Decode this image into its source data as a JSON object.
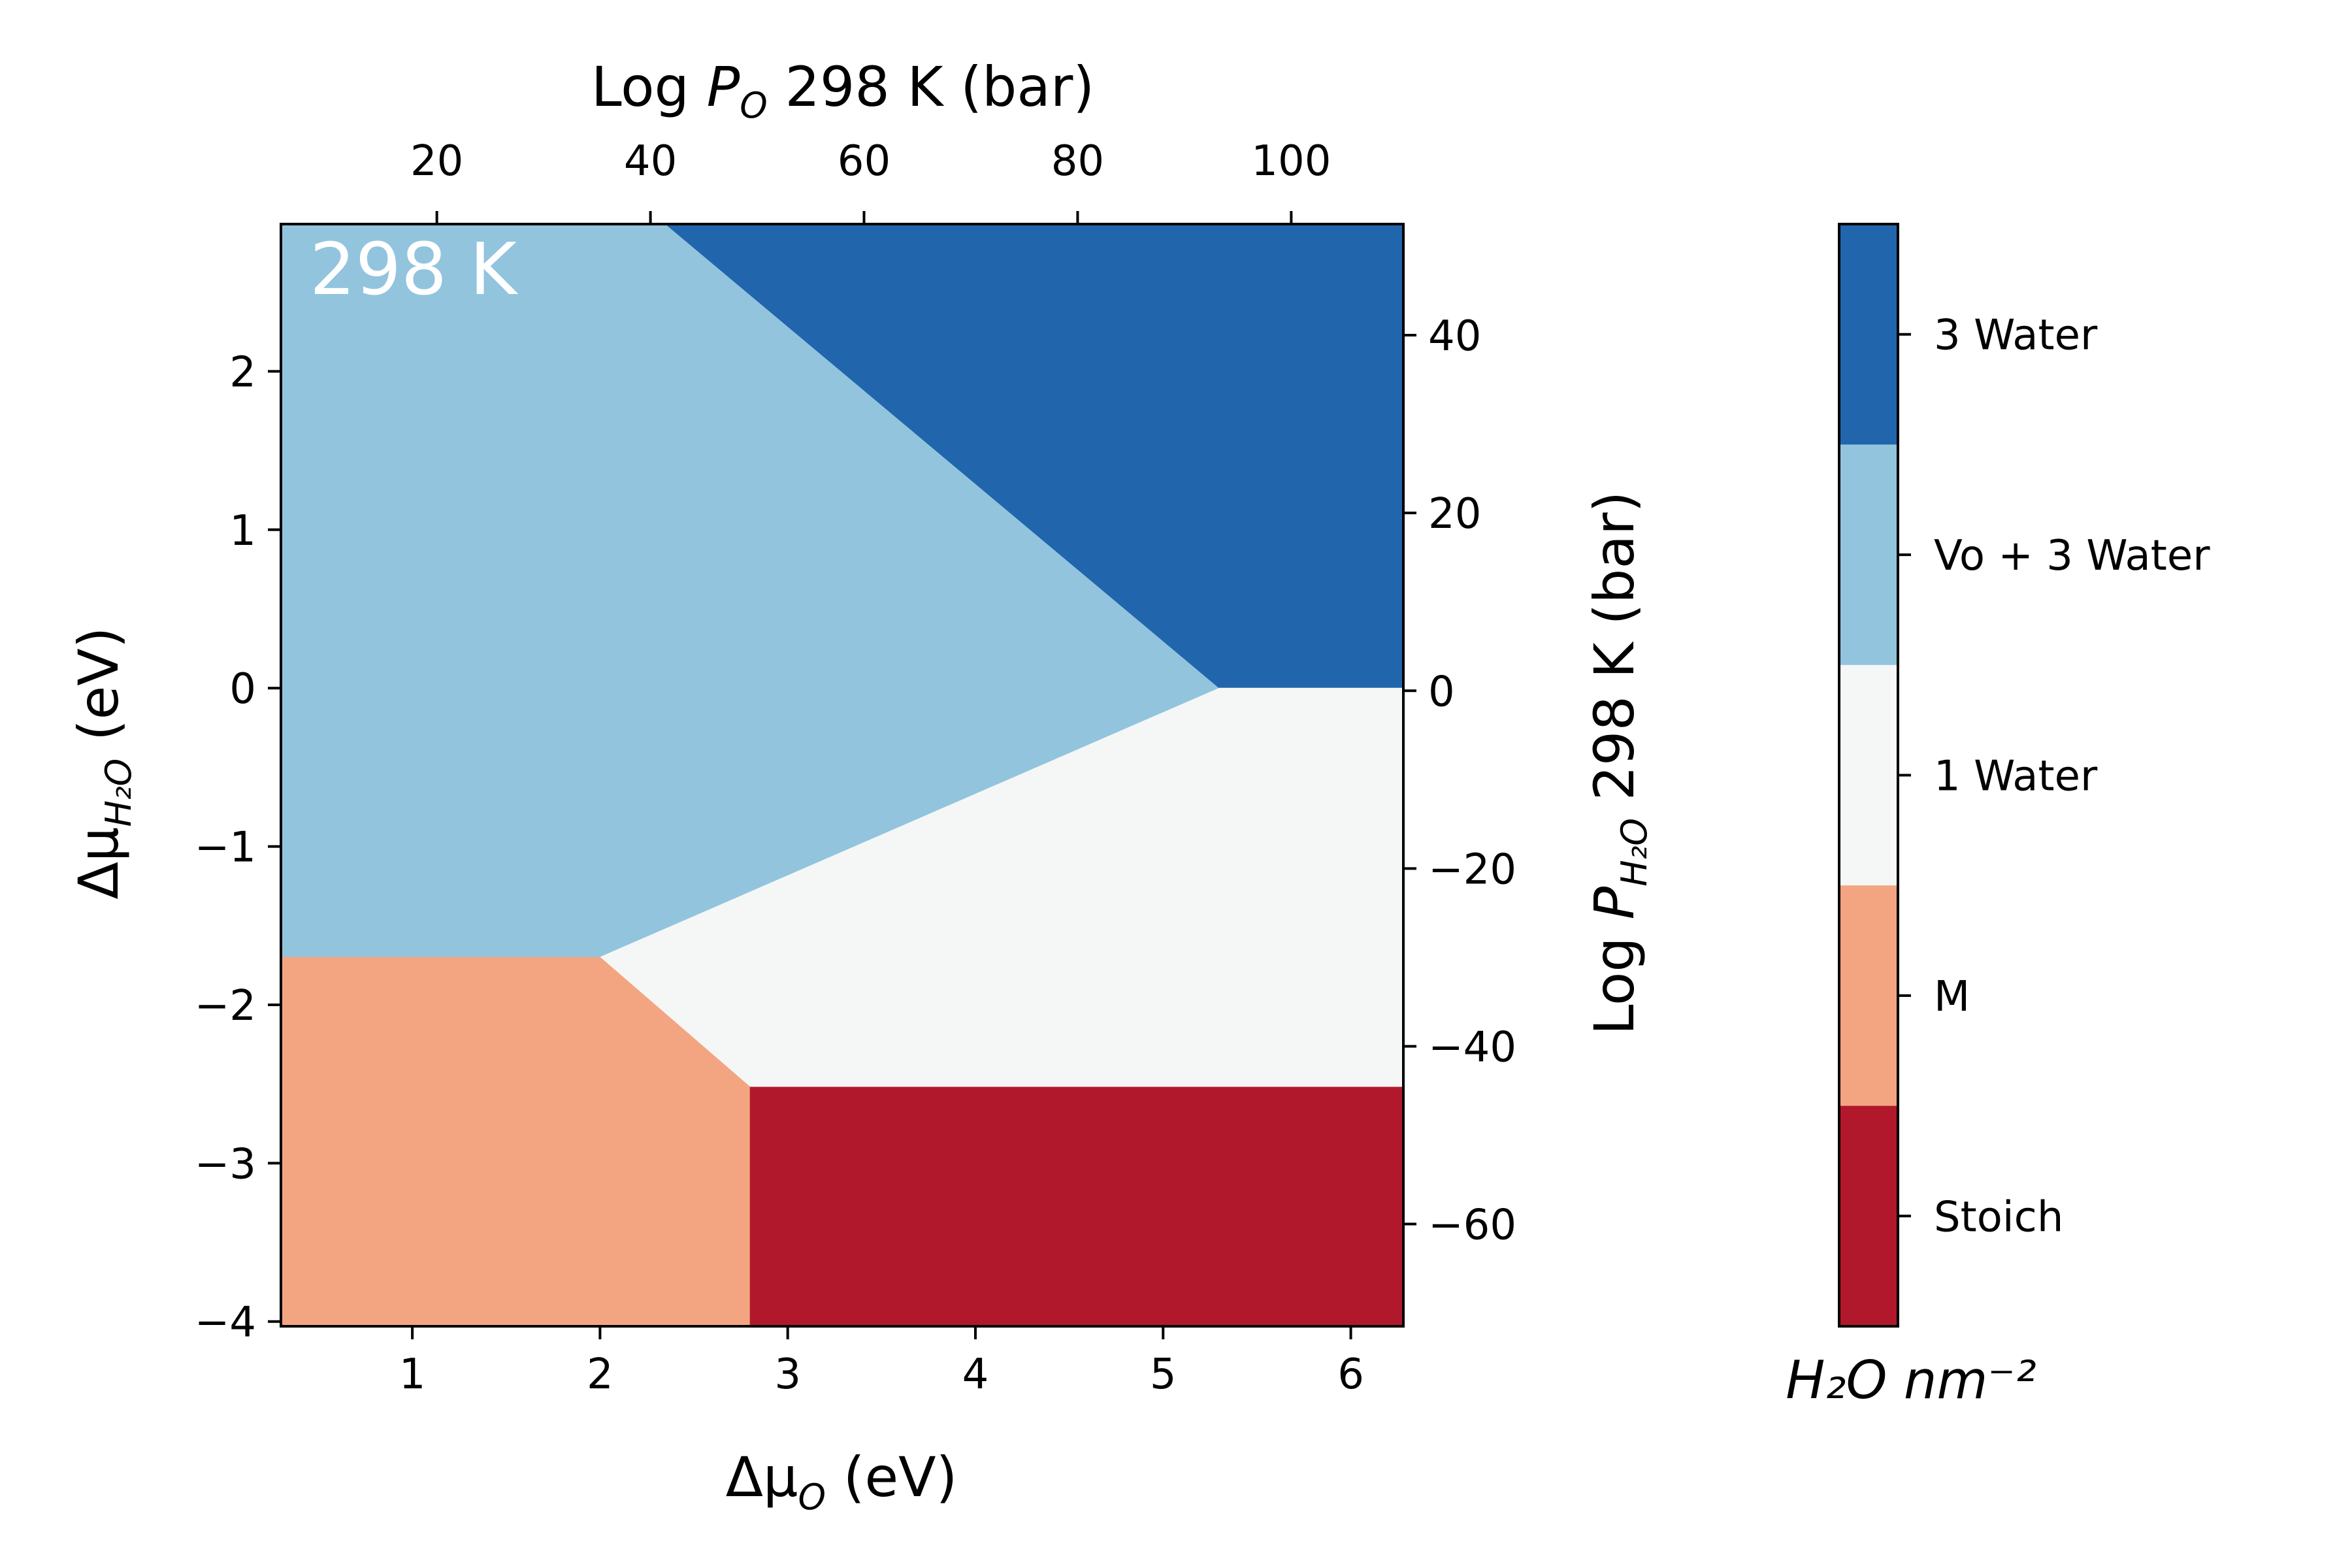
{
  "chart_data": {
    "type": "heatmap",
    "subtype": "phase-diagram",
    "annotation": "298 K",
    "xlabel": {
      "prefix": "Δμ",
      "sub": "O",
      "suffix": " (eV)"
    },
    "ylabel": {
      "prefix": "Δμ",
      "sub": "H₂O",
      "suffix": " (eV)"
    },
    "top_xlabel": {
      "prefix": "Log ",
      "italic": "P",
      "sub": "O",
      "suffix": " 298 K (bar)"
    },
    "right_ylabel": {
      "prefix": "Log ",
      "italic": "P",
      "sub": "H₂O",
      "suffix": " 298 K (bar)"
    },
    "xlim": [
      0.3,
      6.28
    ],
    "ylim": [
      -4.03,
      2.93
    ],
    "x_ticks": [
      "1",
      "2",
      "3",
      "4",
      "5",
      "6"
    ],
    "y_ticks": [
      "−4",
      "−3",
      "−2",
      "−1",
      "0",
      "1",
      "2"
    ],
    "x_tick_values": [
      1,
      2,
      3,
      4,
      5,
      6
    ],
    "y_tick_values": [
      -4,
      -3,
      -2,
      -1,
      0,
      1,
      2
    ],
    "top_xlim": [
      5.4,
      110.5
    ],
    "top_x_ticks": [
      "20",
      "40",
      "60",
      "80",
      "100"
    ],
    "top_x_tick_values": [
      20,
      40,
      60,
      80,
      100
    ],
    "right_ylim": [
      -71.5,
      52.5
    ],
    "right_y_ticks": [
      "40",
      "20",
      "0",
      "−20",
      "−40",
      "−60"
    ],
    "right_y_tick_values": [
      40,
      20,
      0,
      -20,
      -40,
      -60
    ],
    "regions": [
      {
        "name": "Vo + 3 Water",
        "color": "#92c4de",
        "polygon": [
          [
            0.3,
            2.93
          ],
          [
            2.35,
            2.93
          ],
          [
            5.3,
            0.0
          ],
          [
            2.0,
            -1.7
          ],
          [
            0.3,
            -1.7
          ]
        ]
      },
      {
        "name": "3 Water",
        "color": "#2166ac",
        "polygon": [
          [
            2.35,
            2.93
          ],
          [
            6.28,
            2.93
          ],
          [
            6.28,
            0.0
          ],
          [
            5.3,
            0.0
          ]
        ]
      },
      {
        "name": "1 Water",
        "color": "#f5f7f6",
        "polygon": [
          [
            5.3,
            0.0
          ],
          [
            6.28,
            0.0
          ],
          [
            6.28,
            -2.52
          ],
          [
            2.8,
            -2.52
          ],
          [
            2.0,
            -1.7
          ]
        ]
      },
      {
        "name": "M",
        "color": "#f3a582",
        "polygon": [
          [
            0.3,
            -1.7
          ],
          [
            2.0,
            -1.7
          ],
          [
            2.8,
            -2.52
          ],
          [
            2.8,
            -4.03
          ],
          [
            0.3,
            -4.03
          ]
        ]
      },
      {
        "name": "Stoich",
        "color": "#b2182b",
        "polygon": [
          [
            2.8,
            -2.52
          ],
          [
            6.28,
            -2.52
          ],
          [
            6.28,
            -4.03
          ],
          [
            2.8,
            -4.03
          ]
        ]
      }
    ],
    "colorbar": {
      "title": "H₂O nm⁻²",
      "levels": [
        {
          "label": "3 Water",
          "color": "#2166ac"
        },
        {
          "label": "Vo + 3 Water",
          "color": "#92c4de"
        },
        {
          "label": "1 Water",
          "color": "#f5f7f6"
        },
        {
          "label": "M",
          "color": "#f3a582"
        },
        {
          "label": "Stoich",
          "color": "#b2182b"
        }
      ]
    }
  }
}
